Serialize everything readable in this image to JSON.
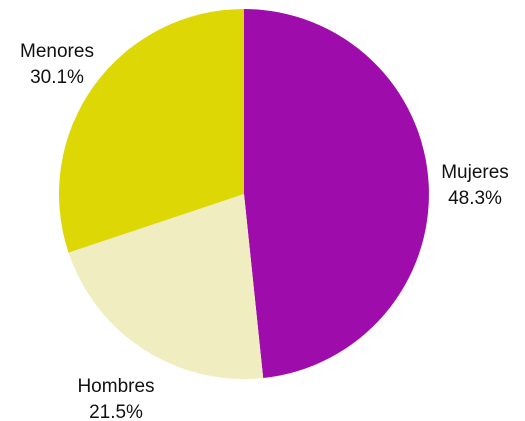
{
  "chart_data": {
    "type": "pie",
    "slices": [
      {
        "label": "Mujeres",
        "value": 48.3,
        "value_label": "48.3%",
        "color": "#9e0dac"
      },
      {
        "label": "Hombres",
        "value": 21.5,
        "value_label": "21.5%",
        "color": "#f0eec0"
      },
      {
        "label": "Menores",
        "value": 30.1,
        "value_label": "30.1%",
        "color": "#ddd705"
      }
    ],
    "start_angle": "12 o'clock",
    "direction": "clockwise",
    "legend": "none"
  }
}
